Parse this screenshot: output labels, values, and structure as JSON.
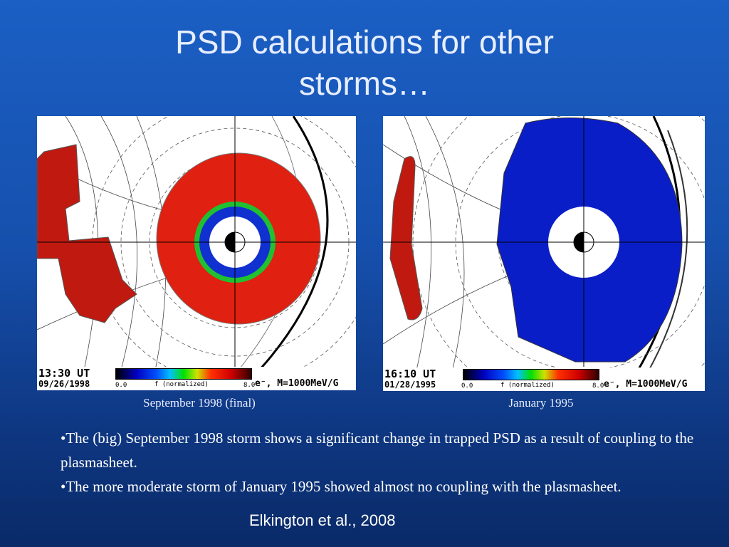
{
  "title": "PSD calculations for other storms…",
  "panels": [
    {
      "time": "13:30 UT",
      "date": "09/26/1998",
      "scale_min": "0.0",
      "scale_label": "f (normalized)",
      "scale_max": "8.0",
      "particle": "e⁻, M=1000MeV/G",
      "caption": "September 1998 (final)"
    },
    {
      "time": "16:10 UT",
      "date": "01/28/1995",
      "scale_min": "0.0",
      "scale_label": "f (normalized)",
      "scale_max": "8.0",
      "particle": "e⁻, M=1000MeV/G",
      "caption": "January 1995"
    }
  ],
  "bullets": [
    "•The (big) September 1998 storm shows a significant change in trapped PSD as a result of coupling to the plasmasheet.",
    "•The more moderate storm of January 1995 showed almost no coupling with the plasmasheet."
  ],
  "citation": "Elkington et al., 2008"
}
